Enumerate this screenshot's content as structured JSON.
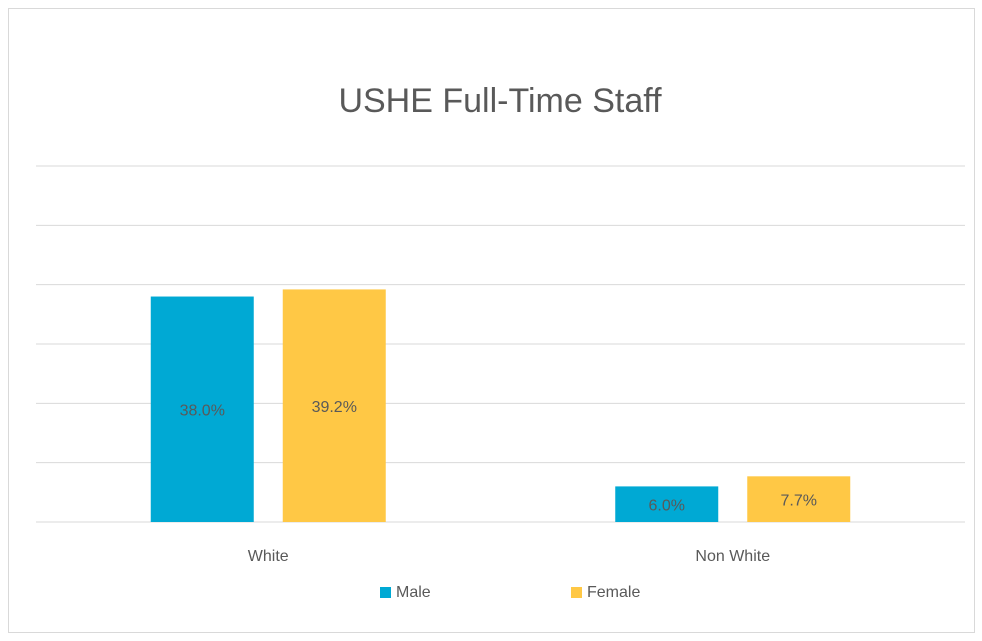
{
  "chart_data": {
    "type": "bar",
    "title": "USHE Full-Time Staff",
    "categories": [
      "White",
      "Non White"
    ],
    "series": [
      {
        "name": "Male",
        "color": "#00a9d4",
        "values": [
          38.0,
          6.0
        ],
        "value_labels": [
          "38.0%",
          "6.0%"
        ]
      },
      {
        "name": "Female",
        "color": "#ffc845",
        "values": [
          39.2,
          7.7
        ],
        "value_labels": [
          "39.2%",
          "7.7%"
        ]
      }
    ],
    "ylim": [
      0,
      60
    ],
    "yticks": [
      0,
      10,
      20,
      30,
      40,
      50,
      60
    ],
    "grid": true,
    "legend": "bottom"
  }
}
